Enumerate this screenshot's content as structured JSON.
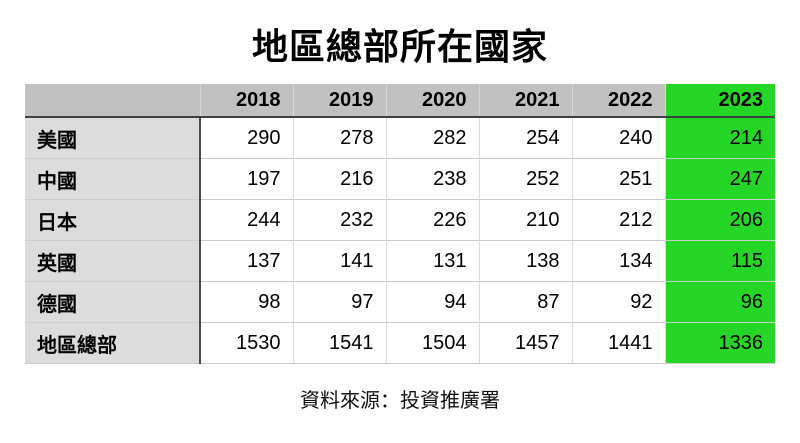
{
  "title": "地區總部所在國家",
  "source": "資料來源：投資推廣署",
  "table": {
    "corner_label": "",
    "year_headers": [
      "2018",
      "2019",
      "2020",
      "2021",
      "2022",
      "2023"
    ],
    "highlight_year": "2023",
    "rows": [
      {
        "label": "美國",
        "values": [
          "290",
          "278",
          "282",
          "254",
          "240",
          "214"
        ]
      },
      {
        "label": "中國",
        "values": [
          "197",
          "216",
          "238",
          "252",
          "251",
          "247"
        ]
      },
      {
        "label": "日本",
        "values": [
          "244",
          "232",
          "226",
          "210",
          "212",
          "206"
        ]
      },
      {
        "label": "英國",
        "values": [
          "137",
          "141",
          "131",
          "138",
          "134",
          "115"
        ]
      },
      {
        "label": "德國",
        "values": [
          "98",
          "97",
          "94",
          "87",
          "92",
          "96"
        ]
      },
      {
        "label": "地區總部",
        "values": [
          "1530",
          "1541",
          "1504",
          "1457",
          "1441",
          "1336"
        ]
      }
    ]
  },
  "colors": {
    "highlight_green": "#26D626",
    "header_gray": "#C1C1C1",
    "label_gray": "#DCDCDC"
  },
  "chart_data": {
    "type": "table",
    "title": "地區總部所在國家",
    "categories": [
      "2018",
      "2019",
      "2020",
      "2021",
      "2022",
      "2023"
    ],
    "series": [
      {
        "name": "美國",
        "values": [
          290,
          278,
          282,
          254,
          240,
          214
        ]
      },
      {
        "name": "中國",
        "values": [
          197,
          216,
          238,
          252,
          251,
          247
        ]
      },
      {
        "name": "日本",
        "values": [
          244,
          232,
          226,
          210,
          212,
          206
        ]
      },
      {
        "name": "英國",
        "values": [
          137,
          141,
          131,
          138,
          134,
          115
        ]
      },
      {
        "name": "德國",
        "values": [
          98,
          97,
          94,
          87,
          92,
          96
        ]
      },
      {
        "name": "地區總部",
        "values": [
          1530,
          1541,
          1504,
          1457,
          1441,
          1336
        ]
      }
    ],
    "annotations": [
      "資料來源：投資推廣署"
    ],
    "layout_hints": {
      "highlight_column": "2023",
      "highlight_color": "#26D626"
    }
  }
}
